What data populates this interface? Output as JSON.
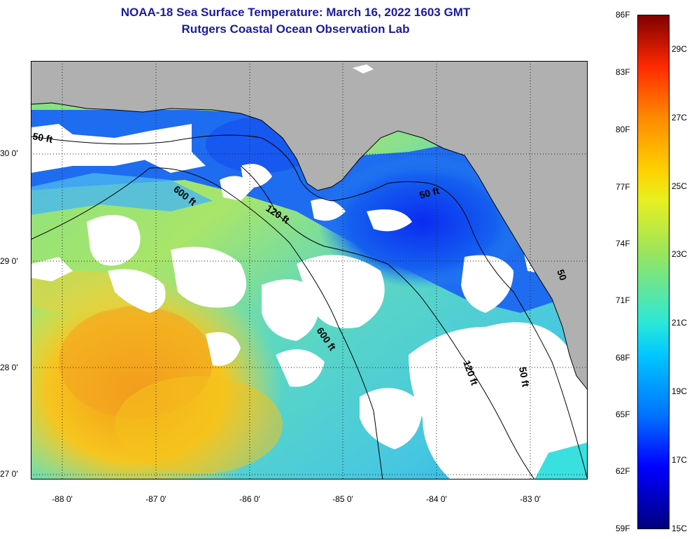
{
  "title_line1": "NOAA-18 Sea Surface Temperature:  March 16, 2022 1603 GMT",
  "title_line2": "Rutgers Coastal Ocean Observation Lab",
  "lat_labels": [
    "30 0'",
    "29 0'",
    "28 0'",
    "27 0'"
  ],
  "lon_labels": [
    "-88 0'",
    "-87 0'",
    "-86 0'",
    "-85 0'",
    "-84 0'",
    "-83 0'"
  ],
  "contour_labels": {
    "c50_west": "50 ft",
    "c600_north": "600 ft",
    "c120_north": "120 ft",
    "c50_east": "50 ft",
    "c600_south": "600 ft",
    "c120_south": "120 ft",
    "c50_south": "50 ft",
    "c50_edge": "50"
  },
  "colorbar": {
    "fahrenheit": [
      "86F",
      "83F",
      "80F",
      "77F",
      "74F",
      "71F",
      "68F",
      "65F",
      "62F",
      "59F"
    ],
    "celsius": [
      "29C",
      "27C",
      "25C",
      "23C",
      "21C",
      "19C",
      "17C",
      "15C"
    ],
    "min_f": 59,
    "max_f": 86
  },
  "colors": {
    "land": "#b0b0b0",
    "cloud": "#ffffff",
    "title": "#1b1b9e",
    "cold": "#0a3cf0",
    "warm": "#f3a41f"
  }
}
